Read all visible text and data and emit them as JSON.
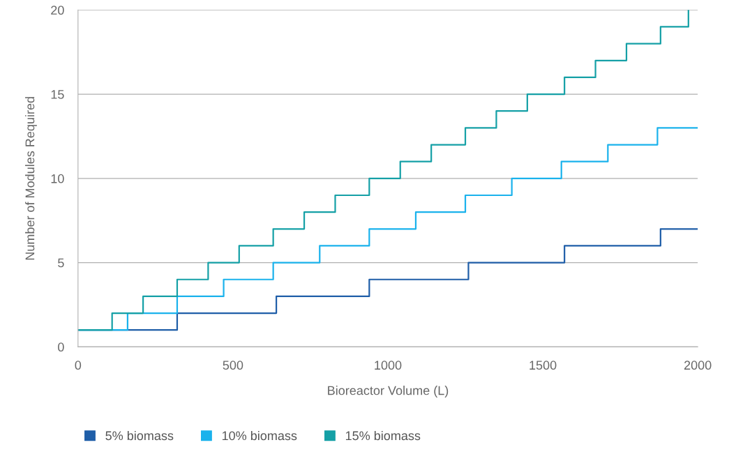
{
  "chart_data": {
    "type": "step",
    "xlabel": "Bioreactor Volume (L)",
    "ylabel": "Number of Modules Required",
    "xlim": [
      0,
      2000
    ],
    "xticks": [
      0,
      500,
      1000,
      1500,
      2000
    ],
    "ylim": [
      0,
      20
    ],
    "yticks": [
      0,
      5,
      10,
      15,
      20
    ],
    "grid": "y",
    "legend": "bottom",
    "series": [
      {
        "name": "5% biomass",
        "color": "#1f5ea8",
        "x": [
          0,
          320,
          640,
          940,
          1260,
          1570,
          1880,
          2000
        ],
        "values": [
          1,
          2,
          3,
          4,
          5,
          6,
          7,
          7
        ]
      },
      {
        "name": "10% biomass",
        "color": "#1ab2ec",
        "x": [
          0,
          160,
          320,
          470,
          630,
          780,
          940,
          1090,
          1250,
          1400,
          1560,
          1710,
          1870,
          2000
        ],
        "values": [
          1,
          2,
          3,
          4,
          5,
          6,
          7,
          8,
          9,
          10,
          11,
          12,
          13,
          13
        ]
      },
      {
        "name": "15% biomass",
        "color": "#15a0a6",
        "x": [
          0,
          110,
          210,
          320,
          420,
          520,
          630,
          730,
          830,
          940,
          1040,
          1140,
          1250,
          1350,
          1450,
          1570,
          1670,
          1770,
          1880,
          1970
        ],
        "values": [
          1,
          2,
          3,
          4,
          5,
          6,
          7,
          8,
          9,
          10,
          11,
          12,
          13,
          14,
          15,
          16,
          17,
          18,
          19,
          20
        ]
      }
    ]
  }
}
